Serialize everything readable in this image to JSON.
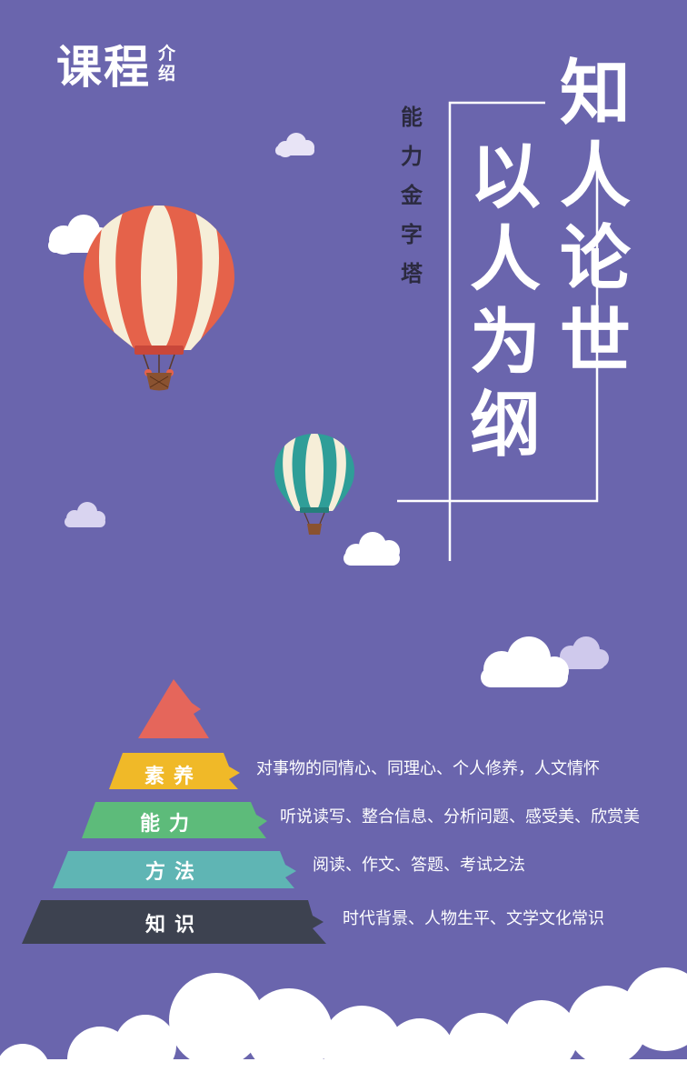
{
  "header": {
    "title": "课程",
    "subtitle": "介绍"
  },
  "vertical_subtitle": "能力金字塔",
  "main_title": {
    "column_right": "知人论世",
    "column_left": "以人为纲"
  },
  "pyramid": {
    "tiers": [
      {
        "label": "素养",
        "description": "对事物的同情心、同理心、个人修养，人文情怀",
        "color": "#f0b928"
      },
      {
        "label": "能力",
        "description": "听说读写、整合信息、分析问题、感受美、欣赏美",
        "color": "#5dbb7a"
      },
      {
        "label": "方法",
        "description": "阅读、作文、答题、考试之法",
        "color": "#5fb5b4"
      },
      {
        "label": "知识",
        "description": "时代背景、人物生平、文学文化常识",
        "color": "#3d4250"
      }
    ],
    "top_color": "#e5665b"
  },
  "colors": {
    "background": "#6a65ad",
    "balloon_red": "#e5624a",
    "balloon_teal": "#2f9e98",
    "cloud": "#ffffff"
  }
}
